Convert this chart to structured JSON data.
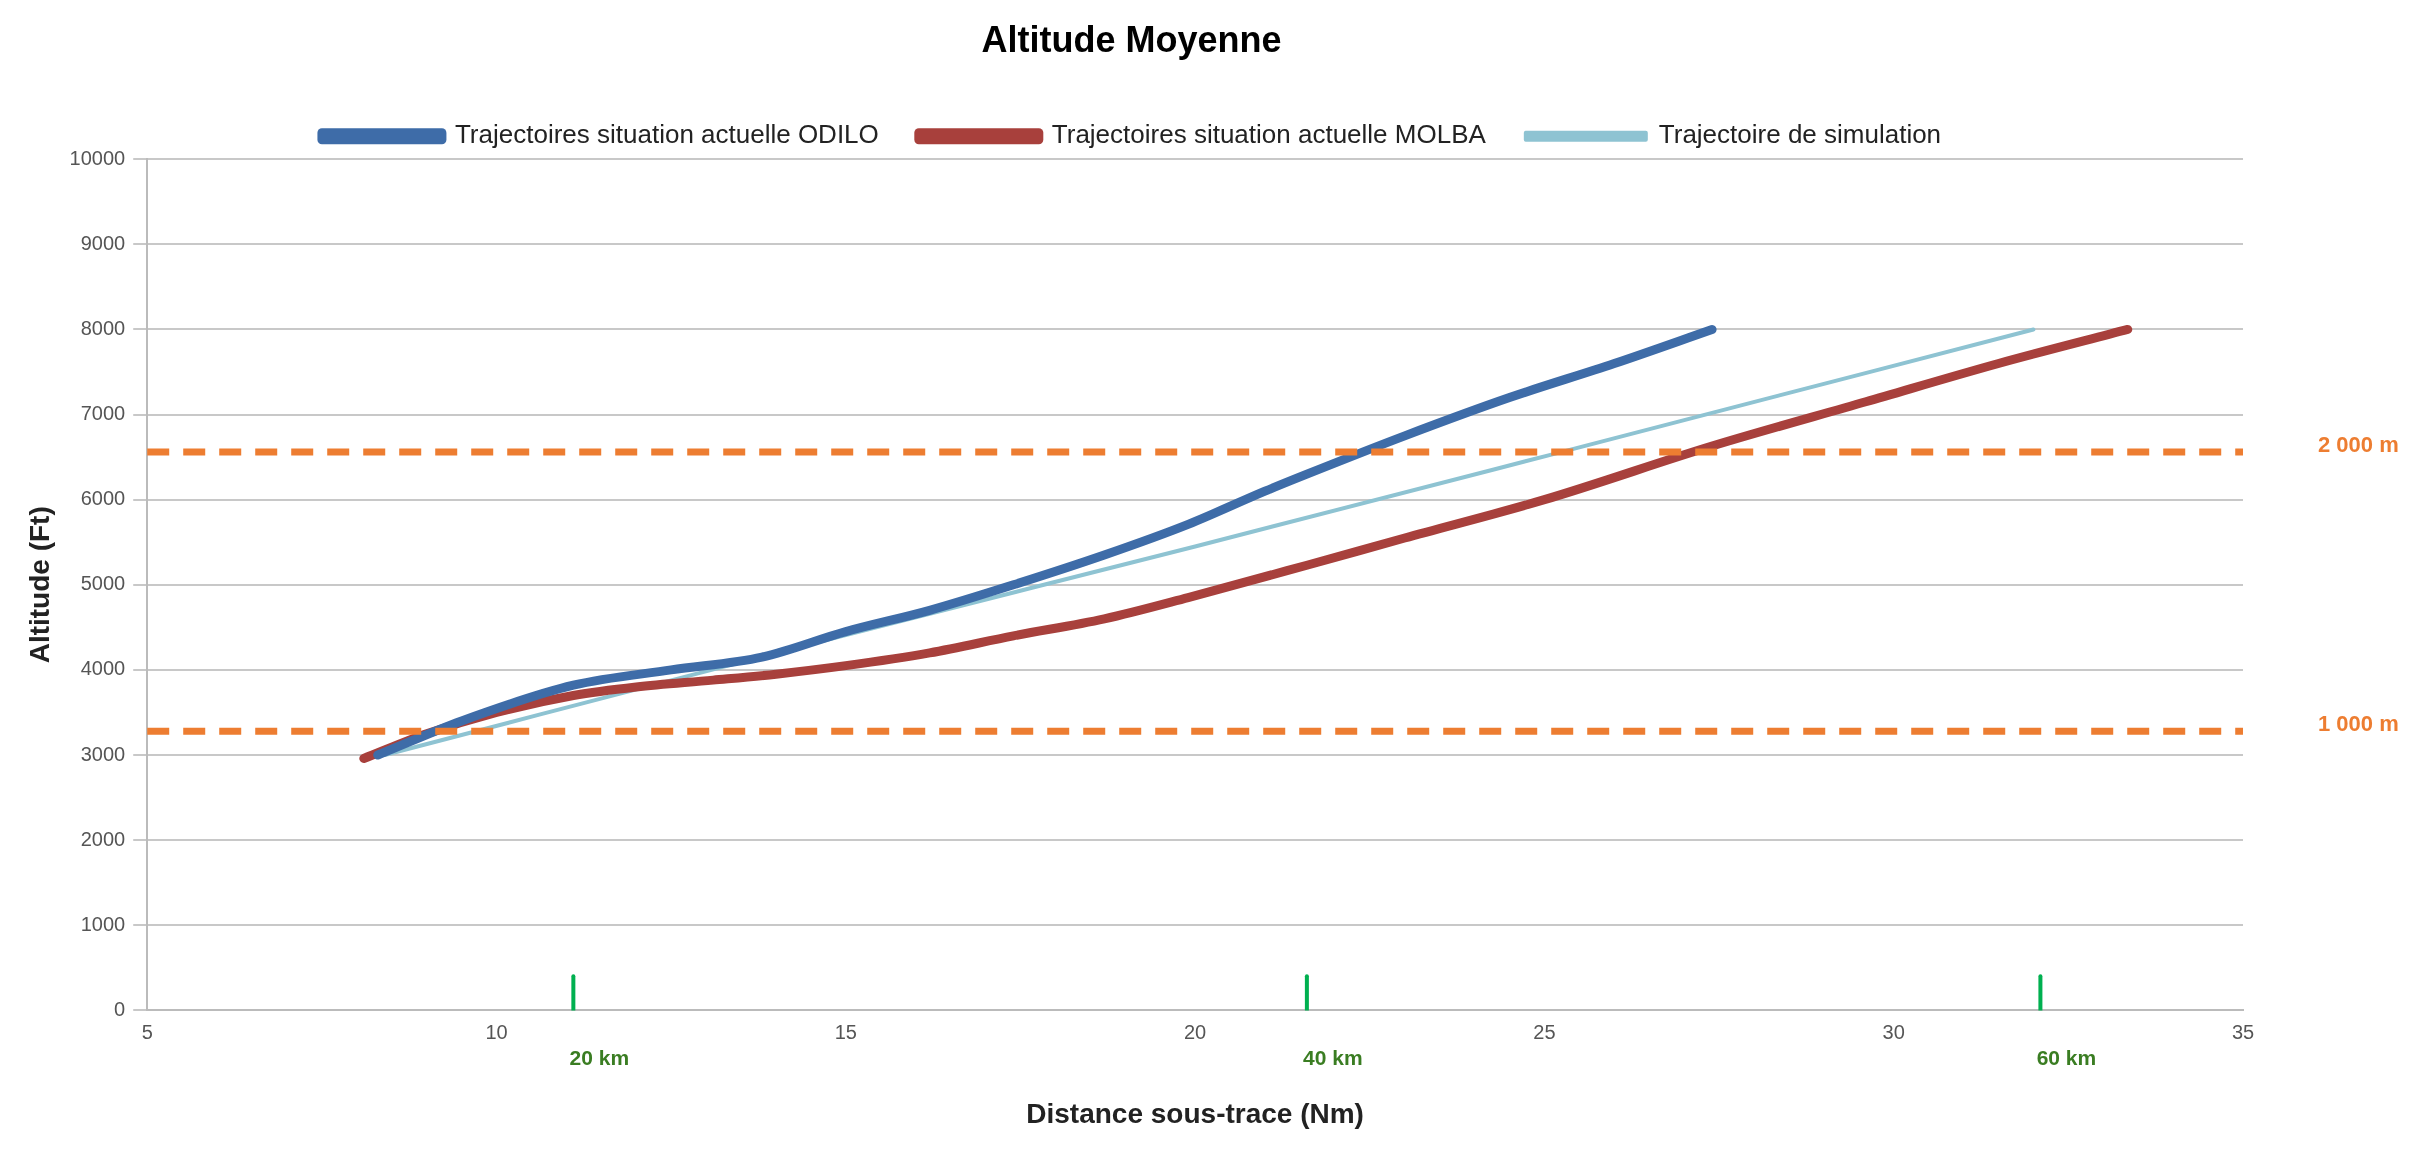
{
  "chart_data": {
    "type": "line",
    "title": "Altitude Moyenne",
    "xlabel": "Distance sous-trace (Nm)",
    "ylabel": "Altitude (Ft)",
    "xlim": [
      5,
      35
    ],
    "xticks": [
      5,
      10,
      15,
      20,
      25,
      30,
      35
    ],
    "ylim": [
      0,
      10000
    ],
    "yticks": [
      0,
      1000,
      2000,
      3000,
      4000,
      5000,
      6000,
      7000,
      8000,
      9000,
      10000
    ],
    "grid": "y",
    "legend": "top",
    "marker": "none",
    "line_style": "solid",
    "series": [
      {
        "name": "Trajectoires situation actuelle ODILO",
        "color": "#3e6ca8",
        "x": [
          8.3,
          9.5,
          11.1,
          12.5,
          13.8,
          15.0,
          16.2,
          17.4,
          18.7,
          19.9,
          21.0,
          21.6,
          23.0,
          24.5,
          26.0,
          27.4
        ],
        "values": [
          3000,
          3400,
          3820,
          4000,
          4150,
          4450,
          4700,
          5000,
          5350,
          5710,
          6100,
          6300,
          6750,
          7200,
          7600,
          8000
        ]
      },
      {
        "name": "Trajectoires situation actuelle MOLBA",
        "color": "#a8403c",
        "x": [
          8.1,
          9.0,
          10.0,
          11.1,
          12.0,
          13.1,
          14.0,
          15.0,
          16.2,
          17.4,
          18.7,
          19.9,
          21.6,
          23.0,
          25.0,
          27.4,
          29.6,
          31.5,
          33.35
        ],
        "values": [
          2960,
          3250,
          3500,
          3700,
          3800,
          3880,
          3950,
          4050,
          4200,
          4400,
          4600,
          4850,
          5230,
          5550,
          6000,
          6630,
          7150,
          7600,
          8000
        ]
      },
      {
        "name": "Trajectoire de simulation",
        "color": "#8ec3d2",
        "x": [
          8.4,
          15.0,
          20.0,
          25.1,
          32.0
        ],
        "values": [
          3000,
          4410,
          5450,
          6530,
          8000
        ]
      },
      {
        "name": "20 km",
        "color": "#00b050",
        "x": [
          11.1,
          11.1
        ],
        "values": [
          0,
          400
        ]
      },
      {
        "name": "40 km",
        "color": "#00b050",
        "x": [
          21.6,
          21.6
        ],
        "values": [
          0,
          400
        ]
      },
      {
        "name": "60 km",
        "color": "#00b050",
        "x": [
          32.1,
          32.1
        ],
        "values": [
          0,
          400
        ]
      }
    ],
    "ref_lines": [
      {
        "axis": "y",
        "value": 6560,
        "label": "2 000 m",
        "color": "#ed7d31",
        "line_style": "dashed"
      },
      {
        "axis": "y",
        "value": 3280,
        "label": "1 000 m",
        "color": "#ed7d31",
        "line_style": "dashed"
      }
    ]
  }
}
